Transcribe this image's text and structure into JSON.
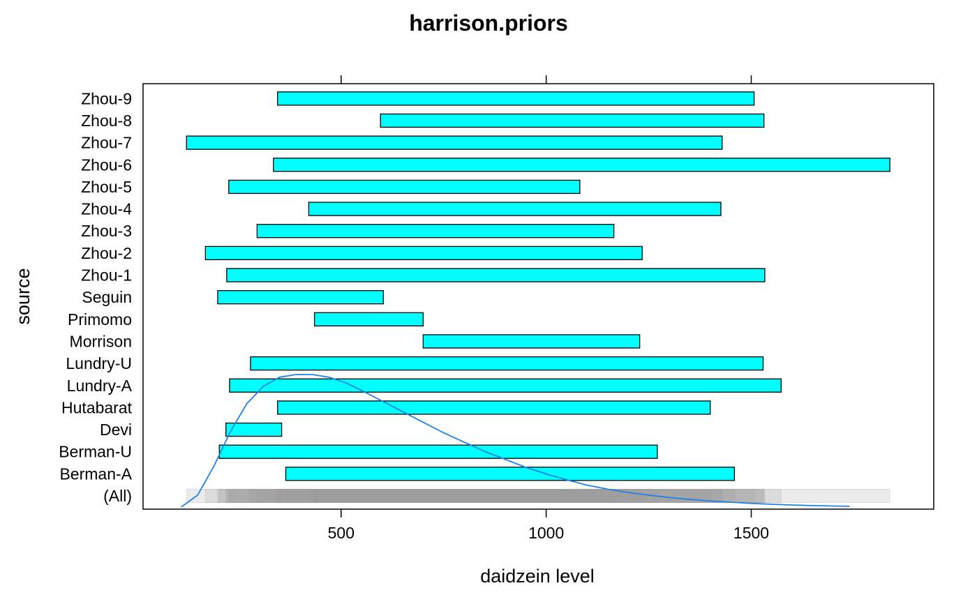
{
  "chart_data": {
    "type": "bar",
    "subtype": "horizontal-range",
    "title": "harrison.priors",
    "xlabel": "daidzein level",
    "ylabel": "source",
    "xlim": [
      17,
      1945
    ],
    "x_ticks": [
      500,
      1000,
      1500
    ],
    "x_tick_labels": [
      "500",
      "1000",
      "1500"
    ],
    "x_ticks_top": true,
    "grid": false,
    "legend": "none",
    "colors": {
      "bar_fill": "#00FFFF",
      "bar_stroke": "#000000",
      "density_line": "#1E82E6",
      "all_range_fill": "#9A9A9A"
    },
    "categories": [
      "(All)",
      "Berman-A",
      "Berman-U",
      "Devi",
      "Hutabarat",
      "Lundry-A",
      "Lundry-U",
      "Morrison",
      "Primomo",
      "Seguin",
      "Zhou-1",
      "Zhou-2",
      "Zhou-3",
      "Zhou-4",
      "Zhou-5",
      "Zhou-6",
      "Zhou-7",
      "Zhou-8",
      "Zhou-9"
    ],
    "ranges": [
      {
        "source": "Berman-A",
        "low": 365,
        "high": 1459
      },
      {
        "source": "Berman-U",
        "low": 203,
        "high": 1271
      },
      {
        "source": "Devi",
        "low": 219,
        "high": 355
      },
      {
        "source": "Hutabarat",
        "low": 345,
        "high": 1400
      },
      {
        "source": "Lundry-A",
        "low": 228,
        "high": 1573
      },
      {
        "source": "Lundry-U",
        "low": 279,
        "high": 1529
      },
      {
        "source": "Morrison",
        "low": 700,
        "high": 1228
      },
      {
        "source": "Primomo",
        "low": 435,
        "high": 700
      },
      {
        "source": "Seguin",
        "low": 199,
        "high": 603
      },
      {
        "source": "Zhou-1",
        "low": 221,
        "high": 1533
      },
      {
        "source": "Zhou-2",
        "low": 169,
        "high": 1234
      },
      {
        "source": "Zhou-3",
        "low": 295,
        "high": 1165
      },
      {
        "source": "Zhou-4",
        "low": 421,
        "high": 1426
      },
      {
        "source": "Zhou-5",
        "low": 226,
        "high": 1082
      },
      {
        "source": "Zhou-6",
        "low": 335,
        "high": 1838
      },
      {
        "source": "Zhou-7",
        "low": 123,
        "high": 1429
      },
      {
        "source": "Zhou-8",
        "low": 596,
        "high": 1531
      },
      {
        "source": "Zhou-9",
        "low": 345,
        "high": 1507
      }
    ],
    "density_curve": {
      "x": [
        110,
        150,
        190,
        230,
        270,
        310,
        350,
        390,
        430,
        470,
        510,
        550,
        600,
        650,
        700,
        750,
        800,
        850,
        900,
        950,
        1000,
        1050,
        1100,
        1150,
        1200,
        1250,
        1300,
        1350,
        1400,
        1450,
        1500,
        1550,
        1600,
        1650,
        1700,
        1740
      ],
      "y": [
        0.0,
        0.09,
        0.31,
        0.57,
        0.78,
        0.91,
        0.98,
        1.0,
        1.0,
        0.98,
        0.94,
        0.88,
        0.8,
        0.72,
        0.64,
        0.56,
        0.49,
        0.42,
        0.36,
        0.3,
        0.25,
        0.205,
        0.165,
        0.135,
        0.11,
        0.09,
        0.072,
        0.058,
        0.046,
        0.037,
        0.028,
        0.021,
        0.015,
        0.011,
        0.008,
        0.006
      ]
    }
  }
}
